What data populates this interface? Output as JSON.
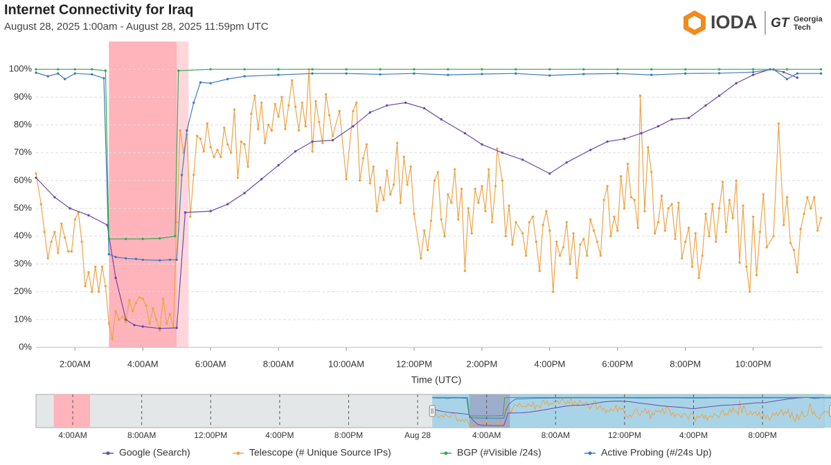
{
  "chart_data": {
    "type": "line",
    "title": "Internet Connectivity for Iraq",
    "subtitle": "August 28, 2025 1:00am - August 28, 2025 11:59pm UTC",
    "logo": {
      "text": "IODA",
      "mark": "GT",
      "partner": [
        "Georgia",
        "Tech"
      ]
    },
    "x_label": "Time (UTC)",
    "xlim": [
      0.85,
      24.05
    ],
    "xticks": [
      {
        "value": 2,
        "label": "2:00AM"
      },
      {
        "value": 4,
        "label": "4:00AM"
      },
      {
        "value": 6,
        "label": "6:00AM"
      },
      {
        "value": 8,
        "label": "8:00AM"
      },
      {
        "value": 10,
        "label": "10:00AM"
      },
      {
        "value": 12,
        "label": "12:00PM"
      },
      {
        "value": 14,
        "label": "2:00PM"
      },
      {
        "value": 16,
        "label": "4:00PM"
      },
      {
        "value": 18,
        "label": "6:00PM"
      },
      {
        "value": 20,
        "label": "8:00PM"
      },
      {
        "value": 22,
        "label": "10:00PM"
      }
    ],
    "ylim": [
      0,
      110
    ],
    "yticks": [
      {
        "value": 0,
        "label": "0%"
      },
      {
        "value": 10,
        "label": "10%"
      },
      {
        "value": 20,
        "label": "20%"
      },
      {
        "value": 30,
        "label": "30%"
      },
      {
        "value": 40,
        "label": "40%"
      },
      {
        "value": 50,
        "label": "50%"
      },
      {
        "value": 60,
        "label": "60%"
      },
      {
        "value": 70,
        "label": "70%"
      },
      {
        "value": 80,
        "label": "80%"
      },
      {
        "value": 90,
        "label": "90%"
      },
      {
        "value": 100,
        "label": "100%"
      }
    ],
    "grid": true,
    "highlights": [
      {
        "start": 3.0,
        "end": 5.0,
        "color": "#ffb3bb"
      },
      {
        "start": 5.0,
        "end": 5.35,
        "color": "#ffd7db"
      }
    ],
    "series": [
      {
        "name": "Google (Search)",
        "color": "#6a4aa8",
        "x": [
          0.85,
          1.4,
          1.85,
          2.4,
          2.95,
          3.2,
          3.5,
          3.75,
          4.0,
          4.5,
          5.0,
          5.25,
          6.0,
          6.5,
          7.0,
          7.5,
          8.0,
          8.5,
          9.0,
          9.6,
          10.2,
          10.7,
          11.2,
          11.75,
          12.3,
          12.8,
          13.5,
          14.0,
          14.6,
          15.2,
          16.0,
          16.5,
          17.2,
          17.7,
          18.2,
          18.7,
          19.2,
          19.6,
          20.1,
          20.6,
          21.0,
          21.5,
          22.0,
          22.5,
          22.9,
          23.3
        ],
        "values": [
          61,
          54,
          50,
          47.5,
          44,
          25,
          10,
          8,
          7.5,
          6.8,
          7,
          48.5,
          49,
          51.5,
          55.5,
          60.5,
          65.5,
          70.5,
          74,
          74.5,
          79.5,
          84.5,
          87,
          88,
          86,
          82,
          77,
          73,
          70,
          67.5,
          62.5,
          66.5,
          71,
          74,
          75,
          77,
          79.5,
          82,
          82.5,
          87,
          90.5,
          95,
          98,
          100,
          99,
          97
        ]
      },
      {
        "name": "Telescope (# Unique Source IPs)",
        "color": "#eda447",
        "x": [
          0.85,
          1.0,
          1.1,
          1.2,
          1.3,
          1.4,
          1.5,
          1.6,
          1.7,
          1.8,
          1.9,
          2.0,
          2.1,
          2.2,
          2.3,
          2.4,
          2.5,
          2.6,
          2.7,
          2.8,
          2.9,
          3.0,
          3.1,
          3.2,
          3.3,
          3.4,
          3.5,
          3.6,
          3.7,
          3.8,
          3.9,
          4.0,
          4.1,
          4.2,
          4.3,
          4.4,
          4.5,
          4.6,
          4.7,
          4.8,
          4.9,
          5.0,
          5.1,
          5.2,
          5.3,
          5.4,
          5.5,
          5.6,
          5.7,
          5.8,
          5.9,
          6.0,
          6.1,
          6.2,
          6.3,
          6.4,
          6.5,
          6.6,
          6.7,
          6.8,
          6.9,
          7.0,
          7.1,
          7.2,
          7.3,
          7.4,
          7.5,
          7.6,
          7.7,
          7.8,
          7.9,
          8.0,
          8.1,
          8.2,
          8.3,
          8.4,
          8.5,
          8.6,
          8.7,
          8.8,
          8.9,
          9.0,
          9.1,
          9.2,
          9.3,
          9.4,
          9.5,
          9.6,
          9.8,
          10.0,
          10.2,
          10.3,
          10.4,
          10.5,
          10.6,
          10.7,
          10.8,
          10.9,
          11.0,
          11.1,
          11.2,
          11.3,
          11.4,
          11.5,
          11.6,
          11.7,
          11.8,
          11.9,
          12.0,
          12.2,
          12.3,
          12.4,
          12.5,
          12.6,
          12.7,
          12.8,
          12.9,
          13.0,
          13.1,
          13.2,
          13.3,
          13.4,
          13.5,
          13.6,
          13.7,
          13.8,
          13.9,
          14.0,
          14.1,
          14.2,
          14.3,
          14.4,
          14.45,
          14.6,
          14.7,
          14.8,
          14.9,
          15.0,
          15.2,
          15.3,
          15.4,
          15.5,
          15.6,
          15.7,
          15.8,
          15.9,
          16.0,
          16.1,
          16.2,
          16.3,
          16.4,
          16.5,
          16.6,
          16.7,
          16.8,
          16.9,
          17.0,
          17.1,
          17.2,
          17.3,
          17.4,
          17.5,
          17.6,
          17.7,
          17.8,
          17.9,
          18.0,
          18.1,
          18.2,
          18.3,
          18.4,
          18.5,
          18.6,
          18.67,
          18.8,
          18.9,
          19.0,
          19.1,
          19.2,
          19.3,
          19.4,
          19.5,
          19.6,
          19.7,
          19.8,
          19.9,
          20.0,
          20.1,
          20.2,
          20.3,
          20.4,
          20.5,
          20.6,
          20.7,
          20.8,
          20.9,
          21.0,
          21.1,
          21.2,
          21.3,
          21.4,
          21.5,
          21.6,
          21.7,
          21.8,
          21.9,
          22.0,
          22.1,
          22.2,
          22.3,
          22.4,
          22.6,
          22.75,
          22.9,
          23.0,
          23.1,
          23.2,
          23.3,
          23.4,
          23.5,
          23.6,
          23.7,
          23.8,
          23.9,
          24.0
        ],
        "values": [
          62.5,
          51.5,
          41.5,
          32,
          38,
          41.5,
          34,
          44.5,
          39.5,
          34.5,
          34.5,
          46,
          48.5,
          38,
          22,
          27,
          20,
          29,
          20,
          29,
          22,
          8.5,
          3,
          13,
          10,
          11,
          9,
          17,
          13,
          16,
          18,
          17.5,
          15,
          8.5,
          14,
          10,
          6,
          17.5,
          8.5,
          12,
          7.5,
          45,
          78,
          70,
          76.5,
          47,
          62,
          76,
          75,
          70.5,
          80.5,
          72,
          68.5,
          71,
          68.5,
          79,
          73,
          70,
          85.5,
          61,
          74,
          73,
          65,
          84,
          90.5,
          78.5,
          88,
          73.5,
          80,
          78,
          87.5,
          83,
          90,
          78.5,
          87,
          96,
          86.5,
          78,
          88,
          79.5,
          100,
          70.5,
          88.5,
          81,
          73.5,
          91,
          83.5,
          76,
          85,
          60.5,
          85,
          88,
          60,
          68,
          73,
          59,
          65,
          49,
          57.5,
          53,
          63.5,
          55,
          58.5,
          73.5,
          52,
          68.5,
          58.5,
          65,
          48,
          32,
          42,
          35,
          45.5,
          60,
          63,
          46,
          40,
          55,
          52,
          64,
          46,
          57,
          27.5,
          50,
          41,
          57,
          52,
          58,
          49,
          64,
          45,
          58,
          71.5,
          60,
          40,
          51,
          37,
          45,
          41,
          33,
          45,
          47,
          38,
          27.5,
          44,
          49,
          42,
          20,
          38,
          33,
          36,
          45,
          30,
          41,
          25,
          37,
          39,
          33,
          46,
          42,
          38,
          33,
          53,
          58,
          40,
          47,
          42,
          61.5,
          50,
          66,
          54,
          53,
          43,
          90.5,
          49,
          72,
          63,
          41,
          45,
          54.5,
          42,
          50,
          51.5,
          39,
          52,
          32,
          38,
          43,
          29,
          41,
          25,
          33,
          48,
          40,
          51.5,
          38,
          50,
          59.5,
          41.5,
          53,
          46.5,
          60,
          30.5,
          51,
          29,
          20,
          47,
          26,
          41.5,
          55,
          36,
          40,
          80.5,
          44,
          54,
          37.5,
          35,
          27,
          42.5,
          48,
          54,
          50,
          54,
          42,
          46.5
        ]
      },
      {
        "name": "BGP (#Visible /24s)",
        "color": "#37a84f",
        "x": [
          0.85,
          1.5,
          2.0,
          2.5,
          2.9,
          3.0,
          3.5,
          4.0,
          4.5,
          4.95,
          5.05,
          6,
          7,
          8,
          9,
          10,
          11,
          12,
          13,
          14,
          15,
          16,
          17,
          18,
          19,
          20,
          21,
          22,
          23,
          24
        ],
        "values": [
          100,
          100,
          100,
          100,
          99.5,
          39,
          39,
          39,
          39.2,
          40,
          99.5,
          100,
          100,
          100,
          100,
          100,
          100,
          100,
          100,
          100,
          100,
          100,
          100,
          100,
          100,
          100,
          100,
          100,
          100,
          100
        ]
      },
      {
        "name": "Active Probing (#/24s Up)",
        "color": "#3b7bbf",
        "x": [
          0.85,
          1.2,
          1.5,
          1.7,
          2.0,
          2.5,
          2.85,
          3.0,
          3.2,
          3.5,
          3.8,
          4.0,
          4.5,
          4.8,
          5.0,
          5.15,
          5.3,
          5.5,
          5.7,
          6.0,
          6.5,
          7.0,
          8.0,
          9.0,
          10.0,
          11.0,
          12.0,
          13.0,
          14.0,
          15.0,
          16.0,
          17.0,
          18.0,
          19.0,
          20.0,
          21.0,
          22.0,
          22.6,
          23.0,
          23.3,
          24.0
        ],
        "values": [
          98.8,
          97.5,
          98.5,
          96.5,
          98.5,
          98.2,
          96.8,
          33.5,
          32.5,
          32,
          31.8,
          31.5,
          31.3,
          31.5,
          31.5,
          62,
          78,
          88,
          95.3,
          95,
          96.5,
          97.5,
          98,
          98.5,
          98.5,
          98.2,
          98.5,
          98,
          98.3,
          98.5,
          97.8,
          98.3,
          98.5,
          98,
          98.5,
          98.6,
          99,
          100,
          96.5,
          98.5,
          98.5
        ]
      }
    ],
    "navigator": {
      "xlim": [
        -22.13,
        23.57
      ],
      "xticks": [
        {
          "value": -20,
          "label": "4:00AM"
        },
        {
          "value": -16,
          "label": "8:00AM"
        },
        {
          "value": -12,
          "label": "12:00PM"
        },
        {
          "value": -8,
          "label": "4:00PM"
        },
        {
          "value": -4,
          "label": "8:00PM"
        },
        {
          "value": 0,
          "label": "Aug 28"
        },
        {
          "value": 4,
          "label": "4:00AM"
        },
        {
          "value": 8,
          "label": "8:00AM"
        },
        {
          "value": 12,
          "label": "12:00PM"
        },
        {
          "value": 16,
          "label": "4:00PM"
        },
        {
          "value": 20,
          "label": "8:00PM"
        }
      ],
      "highlights": [
        {
          "start": -21.1,
          "end": -19.0,
          "color": "#ffb3bb"
        }
      ]
    }
  }
}
